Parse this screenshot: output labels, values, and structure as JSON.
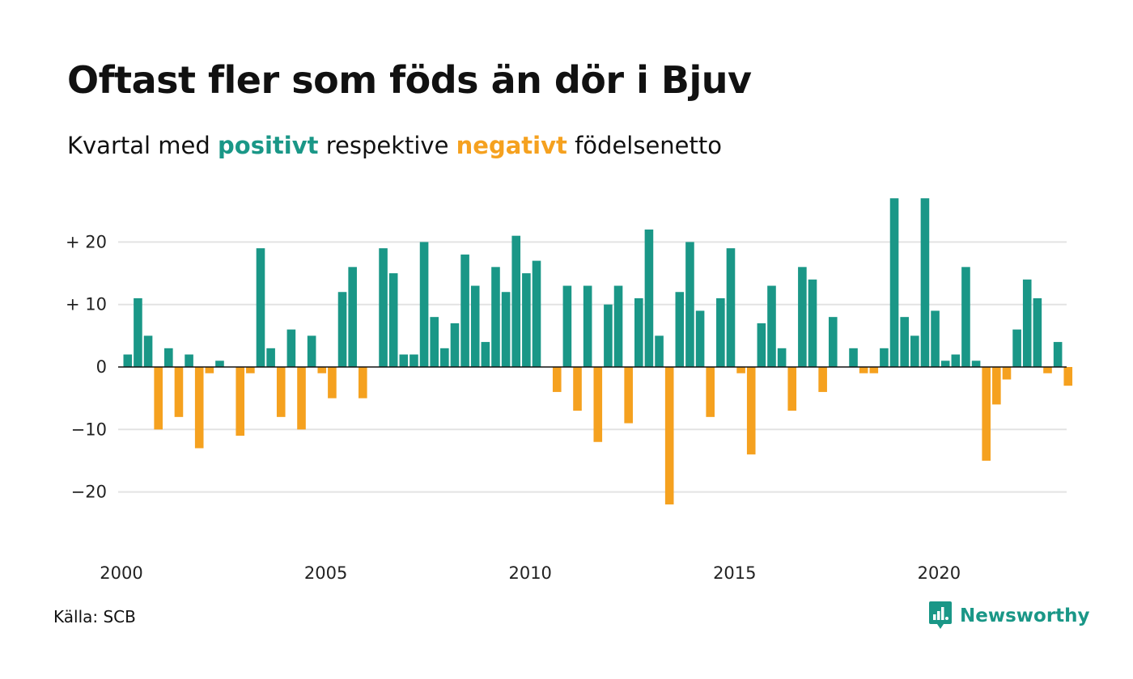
{
  "title": "Oftast fler som föds än dör i Bjuv",
  "subtitle": {
    "prefix": "Kvartal med",
    "positive_word": "positivt",
    "middle": "respektive",
    "negative_word": "negativt",
    "suffix": "födelsenetto"
  },
  "source": "Källa: SCB",
  "brand": "Newsworthy",
  "colors": {
    "positive": "#1a9787",
    "negative": "#f5a11f",
    "grid": "#e3e3e3",
    "zero": "#111111"
  },
  "chart_data": {
    "type": "bar",
    "x_start": "2000 Q1",
    "x_step": "quarter",
    "values": [
      2,
      11,
      5,
      -10,
      3,
      -8,
      2,
      -13,
      -1,
      1,
      0,
      -11,
      -1,
      19,
      3,
      -8,
      6,
      -10,
      5,
      -1,
      -5,
      12,
      16,
      -5,
      0,
      19,
      15,
      2,
      2,
      20,
      8,
      3,
      7,
      18,
      13,
      4,
      16,
      12,
      21,
      15,
      17,
      0,
      -4,
      13,
      -7,
      13,
      -12,
      10,
      13,
      -9,
      11,
      22,
      5,
      -22,
      12,
      20,
      9,
      -8,
      11,
      19,
      -1,
      -14,
      7,
      13,
      3,
      -7,
      16,
      14,
      -4,
      8,
      0,
      3,
      -1,
      -1,
      3,
      27,
      8,
      5,
      27,
      9,
      1,
      2,
      16,
      1,
      -15,
      -6,
      -2,
      6,
      14,
      11,
      -1,
      4,
      -3
    ],
    "yticks": [
      20,
      10,
      0,
      -10,
      -20
    ],
    "ytick_labels": [
      "+ 20",
      "+ 10",
      "0",
      "−10",
      "−20"
    ],
    "xticks": [
      "2000",
      "2005",
      "2010",
      "2015",
      "2020"
    ],
    "ylim": [
      -28,
      28
    ],
    "grid": true,
    "legend": "none"
  }
}
